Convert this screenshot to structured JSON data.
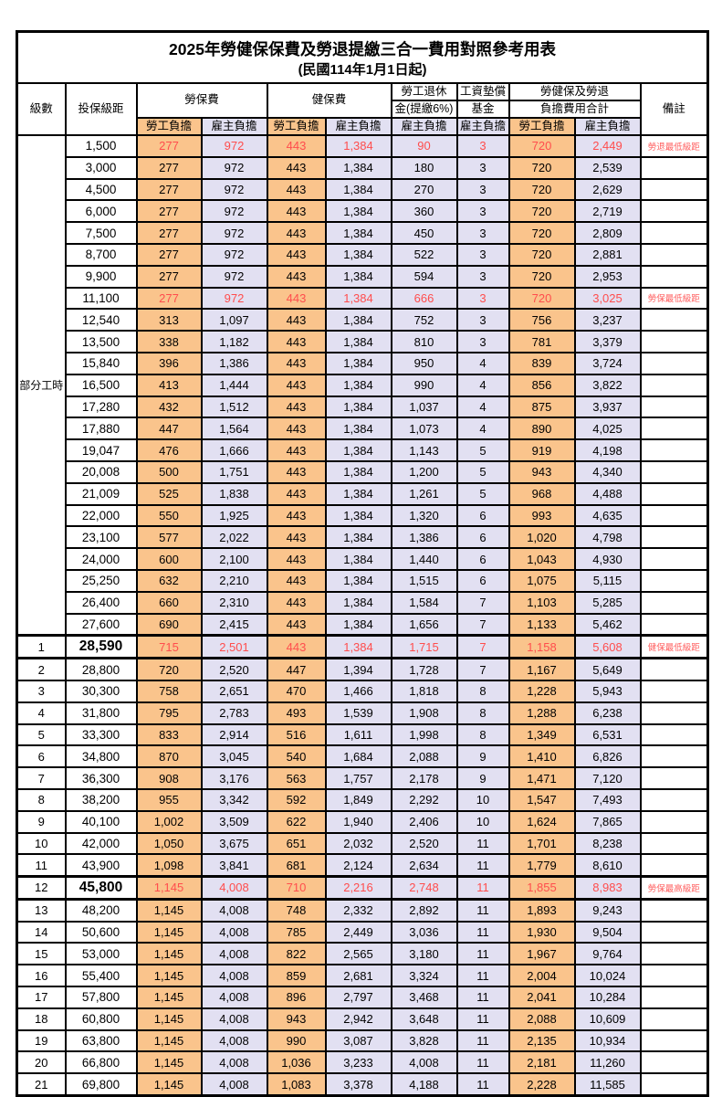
{
  "title": "2025年勞健保保費及勞退提繳三合一費用對照參考用表",
  "subtitle": "(民國114年1月1日起)",
  "colors": {
    "employee_col_bg": "#FAC48C",
    "employer_col_bg": "#E2E0F2",
    "highlight_text": "#FF4D4D",
    "remark_text": "#FF5C5C",
    "border": "#000000"
  },
  "table": {
    "header": {
      "level": "級數",
      "bracket": "投保級距",
      "labor_ins": "勞保費",
      "health_ins": "健保費",
      "pension_line1": "勞工退休",
      "pension_line2": "金(提繳6%)",
      "fund_line1": "工資墊償",
      "fund_line2": "基金",
      "total_line1": "勞健保及勞退",
      "total_line2": "負擔費用合計",
      "remark": "備註",
      "employee": "勞工負擔",
      "employer": "雇主負擔"
    },
    "value_columns": [
      "勞保費勞工負擔",
      "勞保費雇主負擔",
      "健保費勞工負擔",
      "健保費雇主負擔",
      "勞工退休金雇主負擔",
      "工資墊償基金雇主負擔",
      "合計勞工負擔",
      "合計雇主負擔"
    ],
    "part_time_label": "部分工時",
    "part_time_rowspan": 23,
    "rows": [
      {
        "level": "",
        "bracket": "1,500",
        "values": [
          "277",
          "972",
          "443",
          "1,384",
          "90",
          "3",
          "720",
          "2,449"
        ],
        "remark": "勞退最低級距",
        "red": true
      },
      {
        "level": "",
        "bracket": "3,000",
        "values": [
          "277",
          "972",
          "443",
          "1,384",
          "180",
          "3",
          "720",
          "2,539"
        ],
        "remark": ""
      },
      {
        "level": "",
        "bracket": "4,500",
        "values": [
          "277",
          "972",
          "443",
          "1,384",
          "270",
          "3",
          "720",
          "2,629"
        ],
        "remark": ""
      },
      {
        "level": "",
        "bracket": "6,000",
        "values": [
          "277",
          "972",
          "443",
          "1,384",
          "360",
          "3",
          "720",
          "2,719"
        ],
        "remark": ""
      },
      {
        "level": "",
        "bracket": "7,500",
        "values": [
          "277",
          "972",
          "443",
          "1,384",
          "450",
          "3",
          "720",
          "2,809"
        ],
        "remark": ""
      },
      {
        "level": "",
        "bracket": "8,700",
        "values": [
          "277",
          "972",
          "443",
          "1,384",
          "522",
          "3",
          "720",
          "2,881"
        ],
        "remark": ""
      },
      {
        "level": "",
        "bracket": "9,900",
        "values": [
          "277",
          "972",
          "443",
          "1,384",
          "594",
          "3",
          "720",
          "2,953"
        ],
        "remark": ""
      },
      {
        "level": "",
        "bracket": "11,100",
        "values": [
          "277",
          "972",
          "443",
          "1,384",
          "666",
          "3",
          "720",
          "3,025"
        ],
        "remark": "勞保最低級距",
        "red": true
      },
      {
        "level": "",
        "bracket": "12,540",
        "values": [
          "313",
          "1,097",
          "443",
          "1,384",
          "752",
          "3",
          "756",
          "3,237"
        ],
        "remark": ""
      },
      {
        "level": "",
        "bracket": "13,500",
        "values": [
          "338",
          "1,182",
          "443",
          "1,384",
          "810",
          "3",
          "781",
          "3,379"
        ],
        "remark": ""
      },
      {
        "level": "",
        "bracket": "15,840",
        "values": [
          "396",
          "1,386",
          "443",
          "1,384",
          "950",
          "4",
          "839",
          "3,724"
        ],
        "remark": ""
      },
      {
        "level": "",
        "bracket": "16,500",
        "values": [
          "413",
          "1,444",
          "443",
          "1,384",
          "990",
          "4",
          "856",
          "3,822"
        ],
        "remark": ""
      },
      {
        "level": "",
        "bracket": "17,280",
        "values": [
          "432",
          "1,512",
          "443",
          "1,384",
          "1,037",
          "4",
          "875",
          "3,937"
        ],
        "remark": ""
      },
      {
        "level": "",
        "bracket": "17,880",
        "values": [
          "447",
          "1,564",
          "443",
          "1,384",
          "1,073",
          "4",
          "890",
          "4,025"
        ],
        "remark": ""
      },
      {
        "level": "",
        "bracket": "19,047",
        "values": [
          "476",
          "1,666",
          "443",
          "1,384",
          "1,143",
          "5",
          "919",
          "4,198"
        ],
        "remark": ""
      },
      {
        "level": "",
        "bracket": "20,008",
        "values": [
          "500",
          "1,751",
          "443",
          "1,384",
          "1,200",
          "5",
          "943",
          "4,340"
        ],
        "remark": ""
      },
      {
        "level": "",
        "bracket": "21,009",
        "values": [
          "525",
          "1,838",
          "443",
          "1,384",
          "1,261",
          "5",
          "968",
          "4,488"
        ],
        "remark": ""
      },
      {
        "level": "",
        "bracket": "22,000",
        "values": [
          "550",
          "1,925",
          "443",
          "1,384",
          "1,320",
          "6",
          "993",
          "4,635"
        ],
        "remark": ""
      },
      {
        "level": "",
        "bracket": "23,100",
        "values": [
          "577",
          "2,022",
          "443",
          "1,384",
          "1,386",
          "6",
          "1,020",
          "4,798"
        ],
        "remark": ""
      },
      {
        "level": "",
        "bracket": "24,000",
        "values": [
          "600",
          "2,100",
          "443",
          "1,384",
          "1,440",
          "6",
          "1,043",
          "4,930"
        ],
        "remark": ""
      },
      {
        "level": "",
        "bracket": "25,250",
        "values": [
          "632",
          "2,210",
          "443",
          "1,384",
          "1,515",
          "6",
          "1,075",
          "5,115"
        ],
        "remark": ""
      },
      {
        "level": "",
        "bracket": "26,400",
        "values": [
          "660",
          "2,310",
          "443",
          "1,384",
          "1,584",
          "7",
          "1,103",
          "5,285"
        ],
        "remark": ""
      },
      {
        "level": "",
        "bracket": "27,600",
        "values": [
          "690",
          "2,415",
          "443",
          "1,384",
          "1,656",
          "7",
          "1,133",
          "5,462"
        ],
        "remark": ""
      },
      {
        "level": "1",
        "bracket": "28,590",
        "values": [
          "715",
          "2,501",
          "443",
          "1,384",
          "1,715",
          "7",
          "1,158",
          "5,608"
        ],
        "remark": "健保最低級距",
        "red": true,
        "big": true,
        "key": true
      },
      {
        "level": "2",
        "bracket": "28,800",
        "values": [
          "720",
          "2,520",
          "447",
          "1,394",
          "1,728",
          "7",
          "1,167",
          "5,649"
        ],
        "remark": ""
      },
      {
        "level": "3",
        "bracket": "30,300",
        "values": [
          "758",
          "2,651",
          "470",
          "1,466",
          "1,818",
          "8",
          "1,228",
          "5,943"
        ],
        "remark": ""
      },
      {
        "level": "4",
        "bracket": "31,800",
        "values": [
          "795",
          "2,783",
          "493",
          "1,539",
          "1,908",
          "8",
          "1,288",
          "6,238"
        ],
        "remark": ""
      },
      {
        "level": "5",
        "bracket": "33,300",
        "values": [
          "833",
          "2,914",
          "516",
          "1,611",
          "1,998",
          "8",
          "1,349",
          "6,531"
        ],
        "remark": ""
      },
      {
        "level": "6",
        "bracket": "34,800",
        "values": [
          "870",
          "3,045",
          "540",
          "1,684",
          "2,088",
          "9",
          "1,410",
          "6,826"
        ],
        "remark": ""
      },
      {
        "level": "7",
        "bracket": "36,300",
        "values": [
          "908",
          "3,176",
          "563",
          "1,757",
          "2,178",
          "9",
          "1,471",
          "7,120"
        ],
        "remark": ""
      },
      {
        "level": "8",
        "bracket": "38,200",
        "values": [
          "955",
          "3,342",
          "592",
          "1,849",
          "2,292",
          "10",
          "1,547",
          "7,493"
        ],
        "remark": ""
      },
      {
        "level": "9",
        "bracket": "40,100",
        "values": [
          "1,002",
          "3,509",
          "622",
          "1,940",
          "2,406",
          "10",
          "1,624",
          "7,865"
        ],
        "remark": ""
      },
      {
        "level": "10",
        "bracket": "42,000",
        "values": [
          "1,050",
          "3,675",
          "651",
          "2,032",
          "2,520",
          "11",
          "1,701",
          "8,238"
        ],
        "remark": ""
      },
      {
        "level": "11",
        "bracket": "43,900",
        "values": [
          "1,098",
          "3,841",
          "681",
          "2,124",
          "2,634",
          "11",
          "1,779",
          "8,610"
        ],
        "remark": ""
      },
      {
        "level": "12",
        "bracket": "45,800",
        "values": [
          "1,145",
          "4,008",
          "710",
          "2,216",
          "2,748",
          "11",
          "1,855",
          "8,983"
        ],
        "remark": "勞保最高級距",
        "red": true,
        "big": true,
        "key": true
      },
      {
        "level": "13",
        "bracket": "48,200",
        "values": [
          "1,145",
          "4,008",
          "748",
          "2,332",
          "2,892",
          "11",
          "1,893",
          "9,243"
        ],
        "remark": ""
      },
      {
        "level": "14",
        "bracket": "50,600",
        "values": [
          "1,145",
          "4,008",
          "785",
          "2,449",
          "3,036",
          "11",
          "1,930",
          "9,504"
        ],
        "remark": ""
      },
      {
        "level": "15",
        "bracket": "53,000",
        "values": [
          "1,145",
          "4,008",
          "822",
          "2,565",
          "3,180",
          "11",
          "1,967",
          "9,764"
        ],
        "remark": ""
      },
      {
        "level": "16",
        "bracket": "55,400",
        "values": [
          "1,145",
          "4,008",
          "859",
          "2,681",
          "3,324",
          "11",
          "2,004",
          "10,024"
        ],
        "remark": ""
      },
      {
        "level": "17",
        "bracket": "57,800",
        "values": [
          "1,145",
          "4,008",
          "896",
          "2,797",
          "3,468",
          "11",
          "2,041",
          "10,284"
        ],
        "remark": ""
      },
      {
        "level": "18",
        "bracket": "60,800",
        "values": [
          "1,145",
          "4,008",
          "943",
          "2,942",
          "3,648",
          "11",
          "2,088",
          "10,609"
        ],
        "remark": ""
      },
      {
        "level": "19",
        "bracket": "63,800",
        "values": [
          "1,145",
          "4,008",
          "990",
          "3,087",
          "3,828",
          "11",
          "2,135",
          "10,934"
        ],
        "remark": ""
      },
      {
        "level": "20",
        "bracket": "66,800",
        "values": [
          "1,145",
          "4,008",
          "1,036",
          "3,233",
          "4,008",
          "11",
          "2,181",
          "11,260"
        ],
        "remark": ""
      },
      {
        "level": "21",
        "bracket": "69,800",
        "values": [
          "1,145",
          "4,008",
          "1,083",
          "3,378",
          "4,188",
          "11",
          "2,228",
          "11,585"
        ],
        "remark": ""
      }
    ]
  }
}
